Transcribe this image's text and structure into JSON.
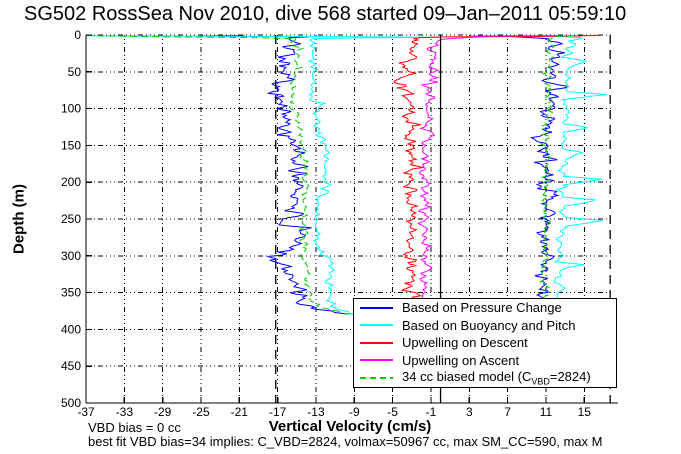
{
  "title": "SG502 RossSea Nov 2010, dive 568 started 09–Jan–2011 05:59:10",
  "footer": {
    "line1": "VBD bias = 0 cc",
    "line2": "best fit VBD bias=34 implies: C_VBD=2824, volmax=50967 cc, max SM_CC=590, max M"
  },
  "colors": {
    "background": "#ffffff",
    "axis": "#000000",
    "grid": "#000000"
  },
  "chart_data": {
    "type": "line",
    "title": "SG502 RossSea Nov 2010, dive 568 started 09–Jan–2011 05:59:10",
    "xlabel": "Vertical Velocity (cm/s)",
    "ylabel": "Depth (m)",
    "xlim": [
      -37,
      18.1
    ],
    "ylim": [
      0,
      500
    ],
    "y_axis_reversed": true,
    "grid": true,
    "xticks": [
      -37,
      -33,
      -29,
      -25,
      -21,
      -17,
      -13,
      -9,
      -5,
      -1,
      3,
      7,
      11,
      15
    ],
    "yticks": [
      0,
      50,
      100,
      150,
      200,
      250,
      300,
      350,
      400,
      450,
      500
    ],
    "legend_position": "inside-bottom-right",
    "max_depth_m": 380,
    "reference_lines": [
      {
        "x": 0,
        "style": "solid",
        "color": "#000000"
      },
      {
        "x": -17.2,
        "style": "dashed",
        "color": "#000000"
      },
      {
        "x": 17.7,
        "style": "dashed",
        "color": "#000000"
      }
    ],
    "legend_model_label": {
      "pre": "34 cc biased model (C",
      "sub": "VBD",
      "post": "=2824)"
    },
    "series": [
      {
        "name": "Based on Pressure Change",
        "color": "#0000ff",
        "dash": false,
        "noise": 1.0,
        "points": [
          [
            0.8,
            -20
          ],
          [
            1.5,
            -25
          ],
          [
            2.5,
            -14
          ],
          [
            4,
            -16
          ],
          [
            10,
            -15.4
          ],
          [
            30,
            -15.6
          ],
          [
            50,
            -16.0
          ],
          [
            70,
            -16.5
          ],
          [
            85,
            -16.8
          ],
          [
            100,
            -16.4
          ],
          [
            115,
            -16.2
          ],
          [
            130,
            -16.0
          ],
          [
            145,
            -15.5
          ],
          [
            160,
            -15.2
          ],
          [
            175,
            -15.0
          ],
          [
            190,
            -14.9
          ],
          [
            205,
            -14.9
          ],
          [
            220,
            -15.1
          ],
          [
            235,
            -15.0
          ],
          [
            250,
            -15.9
          ],
          [
            258,
            -16.4
          ],
          [
            262,
            -15.2
          ],
          [
            272,
            -15.1
          ],
          [
            285,
            -15.3
          ],
          [
            297,
            -15.5
          ],
          [
            301,
            -17.4
          ],
          [
            306,
            -17.6
          ],
          [
            311,
            -16.1
          ],
          [
            318,
            -15.7
          ],
          [
            328,
            -15.5
          ],
          [
            340,
            -15.3
          ],
          [
            352,
            -15.2
          ],
          [
            362,
            -15.0
          ],
          [
            368,
            -14.2
          ],
          [
            373,
            -12.6
          ],
          [
            377,
            -10.6
          ],
          [
            379,
            -9.3
          ],
          [
            379,
            8.8
          ],
          [
            370,
            10.2
          ],
          [
            355,
            10.8
          ],
          [
            340,
            11.0
          ],
          [
            325,
            10.8
          ],
          [
            310,
            10.9
          ],
          [
            295,
            11.2
          ],
          [
            280,
            11.0
          ],
          [
            265,
            11.0
          ],
          [
            250,
            11.2
          ],
          [
            235,
            11.1
          ],
          [
            220,
            11.0
          ],
          [
            205,
            10.9
          ],
          [
            190,
            11.1
          ],
          [
            175,
            11.0
          ],
          [
            160,
            11.1
          ],
          [
            145,
            11.0
          ],
          [
            130,
            11.1
          ],
          [
            115,
            11.2
          ],
          [
            100,
            11.5
          ],
          [
            90,
            12.0
          ],
          [
            80,
            12.2
          ],
          [
            70,
            12.0
          ],
          [
            60,
            11.8
          ],
          [
            50,
            11.6
          ],
          [
            42,
            12.0
          ],
          [
            34,
            12.3
          ],
          [
            26,
            12.6
          ],
          [
            18,
            12.0
          ],
          [
            10,
            11.5
          ],
          [
            5,
            10.5
          ],
          [
            2,
            8.0
          ],
          [
            1,
            12.5
          ]
        ]
      },
      {
        "name": "Based on Buoyancy and Pitch",
        "color": "#00ffff",
        "dash": false,
        "noise": 0.35,
        "points": [
          [
            0.5,
            -37
          ],
          [
            1.2,
            -36
          ],
          [
            1.8,
            -24
          ],
          [
            2.5,
            -8
          ],
          [
            3.2,
            -0.5
          ],
          [
            4,
            -9
          ],
          [
            5,
            -13.4
          ],
          [
            15,
            -13.3
          ],
          [
            30,
            -13.2
          ],
          [
            45,
            -13.4
          ],
          [
            60,
            -13.3
          ],
          [
            75,
            -13.4
          ],
          [
            88,
            -13.5
          ],
          [
            93,
            -12.4
          ],
          [
            105,
            -12.9
          ],
          [
            120,
            -12.8
          ],
          [
            135,
            -12.9
          ],
          [
            142,
            -12.2
          ],
          [
            148,
            -11.9
          ],
          [
            160,
            -12.0
          ],
          [
            175,
            -12.1
          ],
          [
            190,
            -12.0
          ],
          [
            205,
            -12.1
          ],
          [
            218,
            -12.0
          ],
          [
            226,
            -12.8
          ],
          [
            240,
            -12.9
          ],
          [
            255,
            -13.0
          ],
          [
            270,
            -12.9
          ],
          [
            285,
            -12.8
          ],
          [
            298,
            -12.4
          ],
          [
            305,
            -11.5
          ],
          [
            312,
            -11.3
          ],
          [
            325,
            -11.4
          ],
          [
            340,
            -11.5
          ],
          [
            355,
            -11.4
          ],
          [
            365,
            -11.3
          ],
          [
            372,
            -10.8
          ],
          [
            376,
            -9.8
          ],
          [
            379,
            -9.3
          ],
          [
            379,
            9.5
          ],
          [
            370,
            10.8
          ],
          [
            360,
            12.0
          ],
          [
            350,
            12.4
          ],
          [
            342,
            13.0
          ],
          [
            336,
            12.2
          ],
          [
            328,
            12.6
          ],
          [
            318,
            12.3
          ],
          [
            312,
            15.0
          ],
          [
            308,
            12.4
          ],
          [
            300,
            12.6
          ],
          [
            292,
            12.3
          ],
          [
            284,
            12.7
          ],
          [
            276,
            12.4
          ],
          [
            268,
            12.8
          ],
          [
            260,
            13.0
          ],
          [
            252,
            17.5
          ],
          [
            248,
            13.0
          ],
          [
            240,
            12.6
          ],
          [
            232,
            12.9
          ],
          [
            224,
            16.3
          ],
          [
            220,
            12.8
          ],
          [
            212,
            12.6
          ],
          [
            204,
            12.9
          ],
          [
            196,
            17.0
          ],
          [
            192,
            12.9
          ],
          [
            184,
            12.7
          ],
          [
            176,
            13.0
          ],
          [
            168,
            12.8
          ],
          [
            160,
            14.8
          ],
          [
            155,
            12.9
          ],
          [
            148,
            12.7
          ],
          [
            140,
            13.0
          ],
          [
            132,
            12.8
          ],
          [
            126,
            15.5
          ],
          [
            121,
            12.9
          ],
          [
            112,
            13.1
          ],
          [
            104,
            12.9
          ],
          [
            96,
            13.2
          ],
          [
            88,
            13.0
          ],
          [
            81,
            17.4
          ],
          [
            77,
            13.2
          ],
          [
            68,
            13.0
          ],
          [
            60,
            13.3
          ],
          [
            52,
            13.0
          ],
          [
            44,
            13.4
          ],
          [
            36,
            15.0
          ],
          [
            30,
            13.2
          ],
          [
            24,
            13.6
          ],
          [
            18,
            13.2
          ],
          [
            12,
            14.5
          ],
          [
            8,
            13.5
          ],
          [
            4,
            14.8
          ],
          [
            2,
            13.0
          ],
          [
            1,
            10.0
          ]
        ]
      },
      {
        "name": "Upwelling on Descent",
        "color": "#ff0000",
        "dash": false,
        "noise": 0.75,
        "points": [
          [
            0.6,
            16.6
          ],
          [
            1.2,
            14.0
          ],
          [
            2,
            10.0
          ],
          [
            2.6,
            1.0
          ],
          [
            3.5,
            -1.0
          ],
          [
            5,
            -2.0
          ],
          [
            12,
            -2.8
          ],
          [
            22,
            -3.4
          ],
          [
            32,
            -2.6
          ],
          [
            42,
            -4.2
          ],
          [
            52,
            -3.0
          ],
          [
            62,
            -4.4
          ],
          [
            72,
            -3.2
          ],
          [
            82,
            -4.0
          ],
          [
            92,
            -3.0
          ],
          [
            105,
            -3.4
          ],
          [
            120,
            -2.8
          ],
          [
            135,
            -3.3
          ],
          [
            150,
            -2.7
          ],
          [
            165,
            -3.2
          ],
          [
            180,
            -2.9
          ],
          [
            195,
            -3.3
          ],
          [
            210,
            -3.0
          ],
          [
            225,
            -3.4
          ],
          [
            240,
            -2.9
          ],
          [
            255,
            -3.2
          ],
          [
            270,
            -3.0
          ],
          [
            285,
            -3.3
          ],
          [
            300,
            -3.0
          ],
          [
            315,
            -3.2
          ],
          [
            330,
            -2.9
          ],
          [
            345,
            -3.1
          ],
          [
            360,
            -2.8
          ],
          [
            370,
            -3.0
          ],
          [
            378,
            -2.7
          ]
        ]
      },
      {
        "name": "Upwelling on Ascent",
        "color": "#ff00ff",
        "dash": false,
        "noise": 0.5,
        "points": [
          [
            378,
            -1.6
          ],
          [
            365,
            -1.8
          ],
          [
            350,
            -1.5
          ],
          [
            335,
            -1.8
          ],
          [
            320,
            -1.4
          ],
          [
            305,
            -1.7
          ],
          [
            290,
            -1.5
          ],
          [
            275,
            -1.8
          ],
          [
            260,
            -1.4
          ],
          [
            245,
            -1.7
          ],
          [
            230,
            -1.5
          ],
          [
            215,
            -1.8
          ],
          [
            200,
            -1.4
          ],
          [
            185,
            -1.7
          ],
          [
            170,
            -1.5
          ],
          [
            155,
            -1.8
          ],
          [
            140,
            -1.4
          ],
          [
            125,
            -1.6
          ],
          [
            110,
            -1.3
          ],
          [
            95,
            -1.5
          ],
          [
            82,
            -1.1
          ],
          [
            70,
            -1.4
          ],
          [
            58,
            -0.9
          ],
          [
            46,
            -0.6
          ],
          [
            36,
            -0.9
          ],
          [
            28,
            -0.5
          ],
          [
            20,
            -0.9
          ],
          [
            14,
            -0.6
          ],
          [
            8,
            -0.5
          ],
          [
            5,
            0.5
          ],
          [
            3.5,
            2.5
          ],
          [
            2.5,
            4.5
          ],
          [
            1.5,
            3.0
          ],
          [
            1.0,
            12.0
          ],
          [
            0.8,
            12.5
          ]
        ]
      },
      {
        "name": "34 cc biased model (C_VBD=2824)",
        "color": "#00cc00",
        "dash": true,
        "noise": 0.4,
        "points": [
          [
            0.5,
            -37
          ],
          [
            2,
            -32
          ],
          [
            3.5,
            -20
          ],
          [
            5,
            -15.2
          ],
          [
            20,
            -14.9
          ],
          [
            40,
            -15.0
          ],
          [
            60,
            -15.3
          ],
          [
            80,
            -15.6
          ],
          [
            95,
            -15.2
          ],
          [
            110,
            -14.9
          ],
          [
            125,
            -14.7
          ],
          [
            140,
            -14.5
          ],
          [
            155,
            -14.2
          ],
          [
            170,
            -14.1
          ],
          [
            185,
            -14.0
          ],
          [
            200,
            -13.9
          ],
          [
            215,
            -14.0
          ],
          [
            230,
            -14.1
          ],
          [
            245,
            -14.3
          ],
          [
            260,
            -14.2
          ],
          [
            275,
            -14.1
          ],
          [
            290,
            -14.2
          ],
          [
            302,
            -14.6
          ],
          [
            310,
            -14.0
          ],
          [
            322,
            -13.8
          ],
          [
            335,
            -13.7
          ],
          [
            348,
            -13.6
          ],
          [
            360,
            -13.5
          ],
          [
            368,
            -13.0
          ],
          [
            373,
            -11.8
          ],
          [
            377,
            -10.2
          ],
          [
            379,
            -9.5
          ],
          [
            379,
            9.2
          ],
          [
            370,
            10.0
          ],
          [
            358,
            10.6
          ],
          [
            345,
            10.8
          ],
          [
            330,
            10.7
          ],
          [
            315,
            10.8
          ],
          [
            300,
            10.9
          ],
          [
            285,
            10.8
          ],
          [
            270,
            10.9
          ],
          [
            255,
            11.0
          ],
          [
            240,
            10.9
          ],
          [
            225,
            11.0
          ],
          [
            210,
            10.9
          ],
          [
            195,
            11.0
          ],
          [
            180,
            11.0
          ],
          [
            165,
            11.1
          ],
          [
            150,
            11.0
          ],
          [
            135,
            11.1
          ],
          [
            120,
            11.1
          ],
          [
            105,
            11.2
          ],
          [
            90,
            11.3
          ],
          [
            75,
            11.2
          ],
          [
            60,
            11.3
          ],
          [
            45,
            11.4
          ],
          [
            30,
            11.3
          ],
          [
            15,
            11.4
          ],
          [
            6,
            11.2
          ],
          [
            2,
            11.8
          ],
          [
            1,
            14.0
          ]
        ]
      }
    ]
  }
}
